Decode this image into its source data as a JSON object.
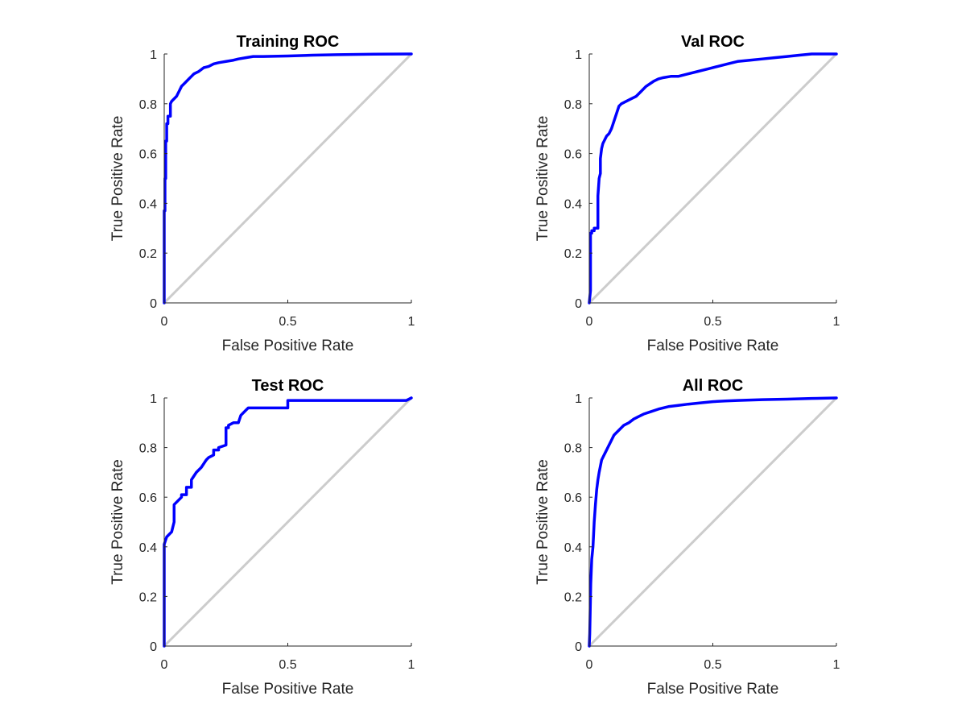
{
  "chart_data": [
    {
      "type": "line",
      "title": "Training ROC",
      "xlabel": "False Positive Rate",
      "ylabel": "True Positive Rate",
      "xlim": [
        0,
        1
      ],
      "ylim": [
        0,
        1
      ],
      "xticks": [
        0,
        0.5,
        1
      ],
      "xtick_labels": [
        "0",
        "0.5",
        "1"
      ],
      "yticks": [
        0,
        0.2,
        0.4,
        0.6,
        0.8,
        1
      ],
      "ytick_labels": [
        "0",
        "0.2",
        "0.4",
        "0.6",
        "0.8",
        "1"
      ],
      "grid": false,
      "reference": {
        "x": [
          0,
          1
        ],
        "y": [
          0,
          1
        ],
        "color": "#cccccc"
      },
      "series": [
        {
          "color": "#0000ff",
          "x": [
            0,
            0,
            0.003,
            0.003,
            0.006,
            0.006,
            0.01,
            0.01,
            0.015,
            0.015,
            0.025,
            0.025,
            0.03,
            0.04,
            0.05,
            0.06,
            0.07,
            0.08,
            0.09,
            0.1,
            0.11,
            0.12,
            0.14,
            0.16,
            0.18,
            0.2,
            0.22,
            0.25,
            0.28,
            0.3,
            0.33,
            0.36,
            0.4,
            0.5,
            0.6,
            0.7,
            0.85,
            1
          ],
          "y": [
            0,
            0.37,
            0.37,
            0.5,
            0.5,
            0.65,
            0.65,
            0.72,
            0.72,
            0.75,
            0.75,
            0.8,
            0.81,
            0.82,
            0.83,
            0.85,
            0.87,
            0.88,
            0.89,
            0.9,
            0.91,
            0.92,
            0.93,
            0.945,
            0.95,
            0.96,
            0.965,
            0.97,
            0.975,
            0.98,
            0.985,
            0.99,
            0.99,
            0.992,
            0.995,
            0.997,
            0.999,
            1
          ]
        }
      ]
    },
    {
      "type": "line",
      "title": "Val ROC",
      "xlabel": "False Positive Rate",
      "ylabel": "True Positive Rate",
      "xlim": [
        0,
        1
      ],
      "ylim": [
        0,
        1
      ],
      "xticks": [
        0,
        0.5,
        1
      ],
      "xtick_labels": [
        "0",
        "0.5",
        "1"
      ],
      "yticks": [
        0,
        0.2,
        0.4,
        0.6,
        0.8,
        1
      ],
      "ytick_labels": [
        "0",
        "0.2",
        "0.4",
        "0.6",
        "0.8",
        "1"
      ],
      "grid": false,
      "reference": {
        "x": [
          0,
          1
        ],
        "y": [
          0,
          1
        ],
        "color": "#cccccc"
      },
      "series": [
        {
          "color": "#0000ff",
          "x": [
            0,
            0.005,
            0.005,
            0.01,
            0.01,
            0.02,
            0.02,
            0.035,
            0.035,
            0.04,
            0.045,
            0.045,
            0.05,
            0.055,
            0.06,
            0.065,
            0.07,
            0.08,
            0.09,
            0.1,
            0.11,
            0.12,
            0.13,
            0.15,
            0.17,
            0.19,
            0.21,
            0.23,
            0.26,
            0.28,
            0.3,
            0.33,
            0.36,
            0.4,
            0.44,
            0.48,
            0.52,
            0.56,
            0.6,
            0.65,
            0.7,
            0.75,
            0.8,
            0.85,
            0.9,
            0.95,
            1
          ],
          "y": [
            0,
            0.05,
            0.28,
            0.28,
            0.29,
            0.29,
            0.3,
            0.3,
            0.43,
            0.5,
            0.52,
            0.58,
            0.62,
            0.64,
            0.65,
            0.66,
            0.67,
            0.68,
            0.7,
            0.73,
            0.76,
            0.79,
            0.8,
            0.81,
            0.82,
            0.83,
            0.85,
            0.87,
            0.89,
            0.9,
            0.905,
            0.91,
            0.91,
            0.92,
            0.93,
            0.94,
            0.95,
            0.96,
            0.97,
            0.975,
            0.98,
            0.985,
            0.99,
            0.995,
            1,
            1,
            1
          ]
        }
      ]
    },
    {
      "type": "line",
      "title": "Test ROC",
      "xlabel": "False Positive Rate",
      "ylabel": "True Positive Rate",
      "xlim": [
        0,
        1
      ],
      "ylim": [
        0,
        1
      ],
      "xticks": [
        0,
        0.5,
        1
      ],
      "xtick_labels": [
        "0",
        "0.5",
        "1"
      ],
      "yticks": [
        0,
        0.2,
        0.4,
        0.6,
        0.8,
        1
      ],
      "ytick_labels": [
        "0",
        "0.2",
        "0.4",
        "0.6",
        "0.8",
        "1"
      ],
      "grid": false,
      "reference": {
        "x": [
          0,
          1
        ],
        "y": [
          0,
          1
        ],
        "color": "#cccccc"
      },
      "series": [
        {
          "color": "#0000ff",
          "x": [
            0,
            0,
            0.01,
            0.02,
            0.03,
            0.03,
            0.04,
            0.04,
            0.07,
            0.07,
            0.09,
            0.09,
            0.11,
            0.11,
            0.13,
            0.15,
            0.17,
            0.18,
            0.2,
            0.2,
            0.22,
            0.22,
            0.25,
            0.25,
            0.26,
            0.26,
            0.28,
            0.3,
            0.31,
            0.33,
            0.34,
            0.35,
            0.5,
            0.5,
            0.98,
            1
          ],
          "y": [
            0,
            0.41,
            0.44,
            0.45,
            0.46,
            0.46,
            0.5,
            0.57,
            0.6,
            0.61,
            0.61,
            0.64,
            0.64,
            0.67,
            0.7,
            0.72,
            0.75,
            0.76,
            0.77,
            0.79,
            0.79,
            0.8,
            0.81,
            0.88,
            0.88,
            0.89,
            0.9,
            0.9,
            0.93,
            0.95,
            0.96,
            0.96,
            0.96,
            0.99,
            0.99,
            1
          ]
        }
      ]
    },
    {
      "type": "line",
      "title": "All ROC",
      "xlabel": "False Positive Rate",
      "ylabel": "True Positive Rate",
      "xlim": [
        0,
        1
      ],
      "ylim": [
        0,
        1
      ],
      "xticks": [
        0,
        0.5,
        1
      ],
      "xtick_labels": [
        "0",
        "0.5",
        "1"
      ],
      "yticks": [
        0,
        0.2,
        0.4,
        0.6,
        0.8,
        1
      ],
      "ytick_labels": [
        "0",
        "0.2",
        "0.4",
        "0.6",
        "0.8",
        "1"
      ],
      "grid": false,
      "reference": {
        "x": [
          0,
          1
        ],
        "y": [
          0,
          1
        ],
        "color": "#cccccc"
      },
      "series": [
        {
          "color": "#0000ff",
          "x": [
            0,
            0.002,
            0.004,
            0.006,
            0.008,
            0.01,
            0.015,
            0.02,
            0.025,
            0.03,
            0.035,
            0.04,
            0.05,
            0.06,
            0.07,
            0.08,
            0.09,
            0.1,
            0.12,
            0.14,
            0.16,
            0.18,
            0.2,
            0.22,
            0.25,
            0.28,
            0.32,
            0.36,
            0.4,
            0.45,
            0.5,
            0.55,
            0.6,
            0.7,
            0.8,
            0.9,
            1
          ],
          "y": [
            0,
            0.05,
            0.15,
            0.25,
            0.3,
            0.35,
            0.4,
            0.5,
            0.57,
            0.63,
            0.67,
            0.7,
            0.75,
            0.77,
            0.79,
            0.81,
            0.83,
            0.85,
            0.87,
            0.89,
            0.9,
            0.915,
            0.925,
            0.935,
            0.945,
            0.955,
            0.965,
            0.97,
            0.975,
            0.98,
            0.985,
            0.988,
            0.99,
            0.993,
            0.995,
            0.998,
            1
          ]
        }
      ]
    }
  ]
}
